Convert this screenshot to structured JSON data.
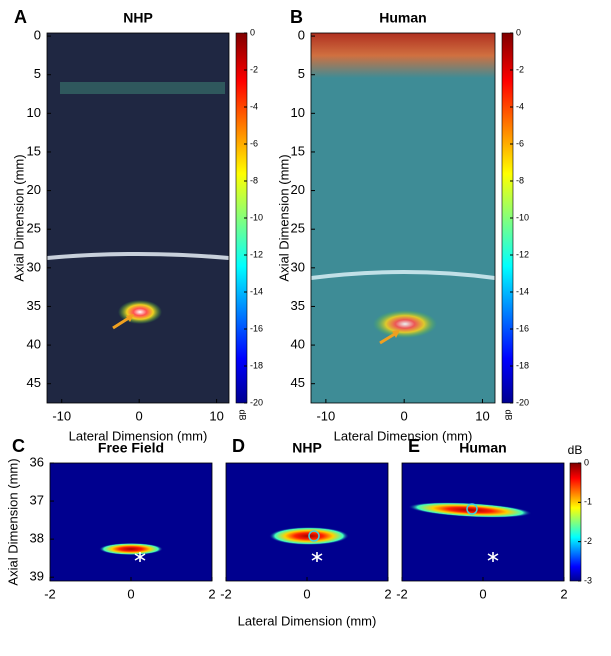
{
  "chart_data": [
    {
      "type": "heatmap",
      "panel": "A",
      "title": "NHP",
      "xlabel": "Lateral Dimension (mm)",
      "ylabel": "Axial Dimension (mm)",
      "xlim": [
        -11.9,
        11.6
      ],
      "xticks": [
        -10,
        0,
        10
      ],
      "ylim": [
        47.5,
        -0.4
      ],
      "yticks": [
        0,
        5,
        10,
        15,
        20,
        25,
        30,
        35,
        40,
        45
      ],
      "colorbar": {
        "label": "dB",
        "clim": [
          -20,
          0
        ],
        "ticks": [
          0,
          -2,
          -4,
          -6,
          -8,
          -10,
          -12,
          -14,
          -16,
          -18,
          -20
        ]
      }
    },
    {
      "type": "heatmap",
      "panel": "B",
      "title": "Human",
      "xlabel": "Lateral Dimension (mm)",
      "ylabel": "Axial Dimension (mm)",
      "xlim": [
        -11.9,
        11.6
      ],
      "xticks": [
        -10,
        0,
        10
      ],
      "ylim": [
        47.5,
        -0.4
      ],
      "yticks": [
        0,
        5,
        10,
        15,
        20,
        25,
        30,
        35,
        40,
        45
      ],
      "colorbar": {
        "label": "dB",
        "clim": [
          -20,
          0
        ],
        "ticks": [
          0,
          -2,
          -4,
          -6,
          -8,
          -10,
          -12,
          -14,
          -16,
          -18,
          -20
        ]
      }
    },
    {
      "type": "heatmap",
      "panel": "C",
      "title": "Free Field",
      "ylabel": "Axial Dimension (mm)",
      "xlim": [
        -2,
        2
      ],
      "xticks": [
        -2,
        0,
        2
      ],
      "ylim": [
        39.1,
        36
      ],
      "yticks": [
        36,
        37,
        38,
        39
      ]
    },
    {
      "type": "heatmap",
      "panel": "D",
      "title": "NHP",
      "xlabel": "Lateral Dimension (mm)",
      "xlim": [
        -2,
        2
      ],
      "xticks": [
        -2,
        0,
        2
      ],
      "ylim": [
        39.1,
        36
      ],
      "yticks": []
    },
    {
      "type": "heatmap",
      "panel": "E",
      "title": "Human",
      "xlim": [
        -2,
        2
      ],
      "xticks": [
        -2,
        0,
        2
      ],
      "ylim": [
        39.1,
        36
      ],
      "yticks": [],
      "colorbar": {
        "label": "dB",
        "clim": [
          -3,
          0
        ],
        "ticks": [
          0,
          -1,
          -2,
          -3
        ]
      }
    }
  ]
}
